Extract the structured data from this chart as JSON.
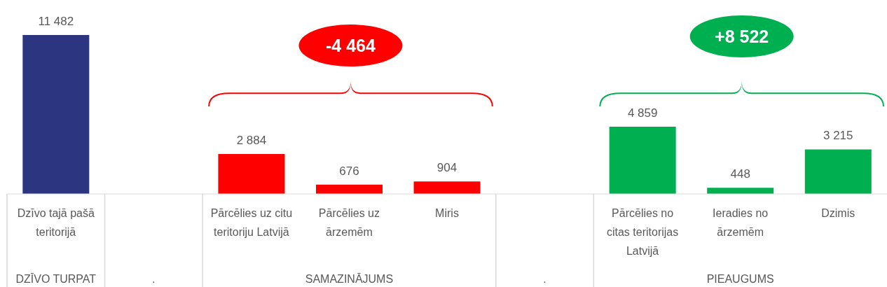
{
  "chart_data": {
    "type": "bar",
    "categories": [
      "Dzīvo tajā pašā teritorijā",
      null,
      "Pārcēlies uz citu teritoriju Latvijā",
      "Pārcēlies uz ārzemēm",
      "Miris",
      null,
      "Pārcēlies no citas teritorijas Latvijā",
      "Ieradies no ārzemēm",
      "Dzimis"
    ],
    "values": [
      11482,
      null,
      2884,
      676,
      904,
      null,
      4859,
      448,
      3215
    ],
    "value_labels": [
      "11 482",
      null,
      "2 884",
      "676",
      "904",
      null,
      "4 859",
      "448",
      "3 215"
    ],
    "colors": [
      "#2b3580",
      "#ffffff",
      "#ff0000",
      "#ff0000",
      "#ff0000",
      "#ffffff",
      "#00b050",
      "#00b050",
      "#00b050"
    ],
    "annotations": [
      "-4 464",
      "+8 522",
      "DZĪVO TURPAT",
      ".",
      "SAMAZINĀJUMS",
      ".",
      "PIEAUGUMS"
    ]
  }
}
